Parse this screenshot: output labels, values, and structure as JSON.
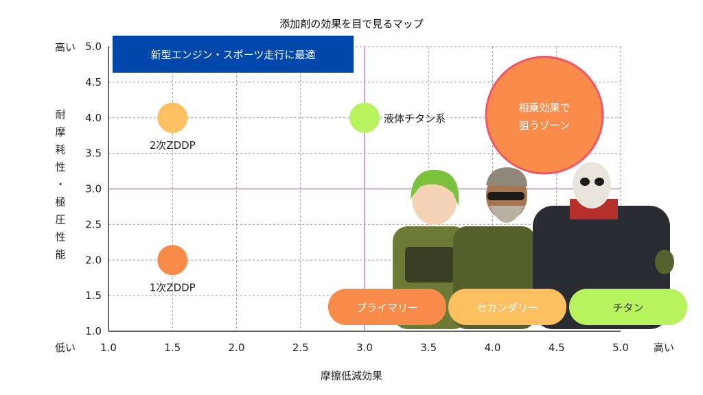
{
  "chart_data": {
    "type": "scatter",
    "title": "添加剤の効果を目で見るマップ",
    "xlabel": "摩擦低減効果",
    "ylabel": "耐摩耗性・極圧性能",
    "xlim": [
      1.0,
      5.0
    ],
    "ylim": [
      1.0,
      5.0
    ],
    "x_ticks": [
      "1.0",
      "1.5",
      "2.0",
      "2.5",
      "3.0",
      "3.5",
      "4.0",
      "4.5",
      "5.0"
    ],
    "y_ticks": [
      "1.0",
      "1.5",
      "2.0",
      "2.5",
      "3.0",
      "3.5",
      "4.0",
      "4.5",
      "5.0"
    ],
    "x_low": "低い",
    "x_high": "高い",
    "y_high": "高い",
    "grid": true,
    "quadrant_lines": {
      "x": 3.0,
      "y": 3.0
    },
    "points": [
      {
        "label": "2次ZDDP",
        "x": 1.5,
        "y": 4.0,
        "color": "#FDBF5F"
      },
      {
        "label": "1次ZDDP",
        "x": 1.5,
        "y": 2.0,
        "color": "#F98B4A"
      },
      {
        "label": "液体チタン系",
        "x": 3.0,
        "y": 4.0,
        "color": "#B6F35F"
      }
    ],
    "banner": {
      "text": "新型エンジン・スポーツ走行に最適",
      "color": "#0047AB"
    },
    "zone": {
      "text_line1": "相乗効果で",
      "text_line2": "狙うゾーン",
      "color": "#FA8C4B",
      "border": "#F25565"
    },
    "legend": [
      {
        "label": "プライマリー",
        "color": "#F98B4A"
      },
      {
        "label": "セカンダリー",
        "color": "#FDBF5F"
      },
      {
        "label": "チタン",
        "color": "#B6F35F"
      }
    ]
  }
}
